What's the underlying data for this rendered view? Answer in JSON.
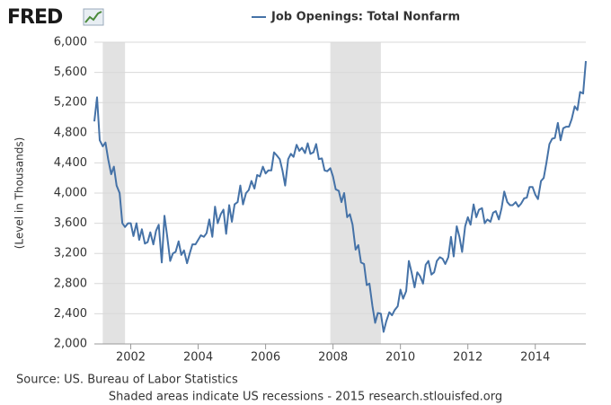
{
  "logo": "FRED",
  "chart_data": {
    "type": "line",
    "y_label": "(Level in Thousands)",
    "source": "Source: US. Bureau of Labor Statistics",
    "note": "Shaded areas indicate US recessions - 2015 research.stlouisfed.org",
    "x": [
      2000.92,
      2001.0,
      2001.08,
      2001.17,
      2001.25,
      2001.33,
      2001.42,
      2001.5,
      2001.58,
      2001.67,
      2001.75,
      2001.83,
      2001.92,
      2002.0,
      2002.08,
      2002.17,
      2002.25,
      2002.33,
      2002.42,
      2002.5,
      2002.58,
      2002.67,
      2002.75,
      2002.83,
      2002.92,
      2003.0,
      2003.08,
      2003.17,
      2003.25,
      2003.33,
      2003.42,
      2003.5,
      2003.58,
      2003.67,
      2003.75,
      2003.83,
      2003.92,
      2004.0,
      2004.08,
      2004.17,
      2004.25,
      2004.33,
      2004.42,
      2004.5,
      2004.58,
      2004.67,
      2004.75,
      2004.83,
      2004.92,
      2005.0,
      2005.08,
      2005.17,
      2005.25,
      2005.33,
      2005.42,
      2005.5,
      2005.58,
      2005.67,
      2005.75,
      2005.83,
      2005.92,
      2006.0,
      2006.08,
      2006.17,
      2006.25,
      2006.33,
      2006.42,
      2006.5,
      2006.58,
      2006.67,
      2006.75,
      2006.83,
      2006.92,
      2007.0,
      2007.08,
      2007.17,
      2007.25,
      2007.33,
      2007.42,
      2007.5,
      2007.58,
      2007.67,
      2007.75,
      2007.83,
      2007.92,
      2008.0,
      2008.08,
      2008.17,
      2008.25,
      2008.33,
      2008.42,
      2008.5,
      2008.58,
      2008.67,
      2008.75,
      2008.83,
      2008.92,
      2009.0,
      2009.08,
      2009.17,
      2009.25,
      2009.33,
      2009.42,
      2009.5,
      2009.58,
      2009.67,
      2009.75,
      2009.83,
      2009.92,
      2010.0,
      2010.08,
      2010.17,
      2010.25,
      2010.33,
      2010.42,
      2010.5,
      2010.58,
      2010.67,
      2010.75,
      2010.83,
      2010.92,
      2011.0,
      2011.08,
      2011.17,
      2011.25,
      2011.33,
      2011.42,
      2011.5,
      2011.58,
      2011.67,
      2011.75,
      2011.83,
      2011.92,
      2012.0,
      2012.08,
      2012.17,
      2012.25,
      2012.33,
      2012.42,
      2012.5,
      2012.58,
      2012.67,
      2012.75,
      2012.83,
      2012.92,
      2013.0,
      2013.08,
      2013.17,
      2013.25,
      2013.33,
      2013.42,
      2013.5,
      2013.58,
      2013.67,
      2013.75,
      2013.83,
      2013.92,
      2014.0,
      2014.08,
      2014.17,
      2014.25,
      2014.33,
      2014.42,
      2014.5,
      2014.58,
      2014.67,
      2014.75,
      2014.83,
      2014.92,
      2015.0,
      2015.08,
      2015.17,
      2015.25,
      2015.33,
      2015.42,
      2015.5
    ],
    "series": [
      {
        "name": "Job Openings: Total Nonfarm",
        "color": "#4572a7",
        "values": [
          4950,
          5270,
          4700,
          4620,
          4670,
          4450,
          4250,
          4350,
          4100,
          4000,
          3600,
          3550,
          3600,
          3600,
          3430,
          3600,
          3380,
          3520,
          3330,
          3350,
          3480,
          3320,
          3500,
          3580,
          3080,
          3700,
          3430,
          3100,
          3200,
          3220,
          3360,
          3180,
          3240,
          3070,
          3200,
          3320,
          3320,
          3380,
          3440,
          3420,
          3470,
          3650,
          3420,
          3820,
          3600,
          3720,
          3780,
          3460,
          3840,
          3620,
          3850,
          3880,
          4100,
          3850,
          4000,
          4040,
          4160,
          4060,
          4240,
          4220,
          4350,
          4260,
          4300,
          4300,
          4540,
          4500,
          4450,
          4300,
          4100,
          4450,
          4520,
          4480,
          4640,
          4560,
          4600,
          4530,
          4660,
          4520,
          4540,
          4650,
          4450,
          4460,
          4300,
          4290,
          4330,
          4220,
          4050,
          4030,
          3880,
          4000,
          3680,
          3720,
          3580,
          3250,
          3310,
          3080,
          3060,
          2780,
          2800,
          2500,
          2280,
          2410,
          2400,
          2160,
          2300,
          2420,
          2380,
          2450,
          2500,
          2720,
          2600,
          2700,
          3100,
          2950,
          2750,
          2950,
          2900,
          2800,
          3050,
          3100,
          2920,
          2950,
          3100,
          3150,
          3130,
          3060,
          3150,
          3420,
          3160,
          3560,
          3420,
          3220,
          3560,
          3680,
          3580,
          3850,
          3680,
          3780,
          3800,
          3600,
          3650,
          3620,
          3740,
          3760,
          3650,
          3800,
          4020,
          3880,
          3840,
          3840,
          3880,
          3820,
          3860,
          3930,
          3940,
          4080,
          4080,
          3980,
          3920,
          4160,
          4200,
          4400,
          4650,
          4720,
          4730,
          4930,
          4700,
          4860,
          4880,
          4880,
          4980,
          5150,
          5100,
          5340,
          5320,
          5750
        ]
      }
    ],
    "shaded": [
      [
        2001.17,
        2001.83
      ],
      [
        2007.92,
        2009.42
      ]
    ],
    "xlim": [
      2000.92,
      2015.5
    ],
    "xticks": [
      2002,
      2004,
      2006,
      2008,
      2010,
      2012,
      2014
    ],
    "ylim": [
      2000,
      6000
    ],
    "yticks": [
      {
        "value": 2000,
        "label": "2,000"
      },
      {
        "value": 2400,
        "label": "2,400"
      },
      {
        "value": 2800,
        "label": "2,800"
      },
      {
        "value": 3200,
        "label": "3,200"
      },
      {
        "value": 3600,
        "label": "3,600"
      },
      {
        "value": 4000,
        "label": "4,000"
      },
      {
        "value": 4400,
        "label": "4,400"
      },
      {
        "value": 4800,
        "label": "4,800"
      },
      {
        "value": 5200,
        "label": "5,200"
      },
      {
        "value": 5600,
        "label": "5,600"
      },
      {
        "value": 6000,
        "label": "6,000"
      }
    ],
    "grid": true
  }
}
